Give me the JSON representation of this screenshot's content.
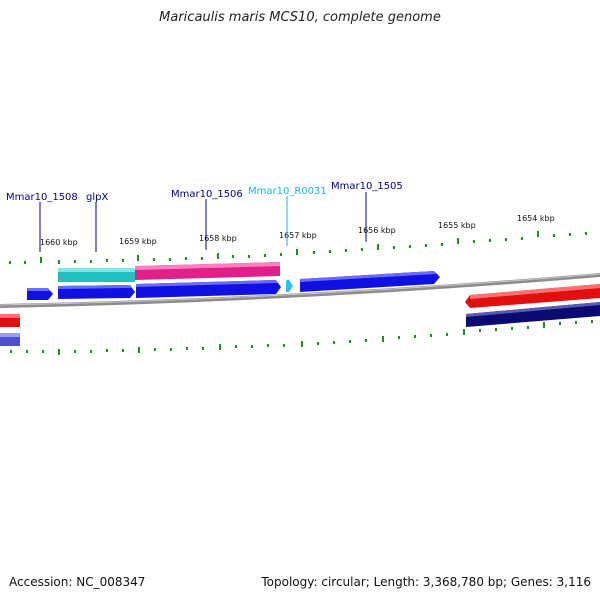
{
  "title": "Maricaulis maris MCS10, complete genome",
  "footer": {
    "accession": "Accession: NC_008347",
    "summary": "Topology: circular; Length: 3,368,780 bp; Genes: 3,116"
  },
  "colors": {
    "label_blue": "#00008b",
    "label_cyan": "#1eb4e6",
    "tick_green": "#228b22",
    "backbone": "#8c8c8c"
  },
  "ticks": [
    {
      "label": "1660 kbp"
    },
    {
      "label": "1659 kbp"
    },
    {
      "label": "1658 kbp"
    },
    {
      "label": "1657 kbp"
    },
    {
      "label": "1656 kbp"
    },
    {
      "label": "1655 kbp"
    },
    {
      "label": "1654 kbp"
    }
  ],
  "gene_labels": [
    {
      "text": "Mmar10_1508"
    },
    {
      "text": "glpX"
    },
    {
      "text": "Mmar10_1506"
    },
    {
      "text": "Mmar10_R0031"
    },
    {
      "text": "Mmar10_1505"
    }
  ]
}
